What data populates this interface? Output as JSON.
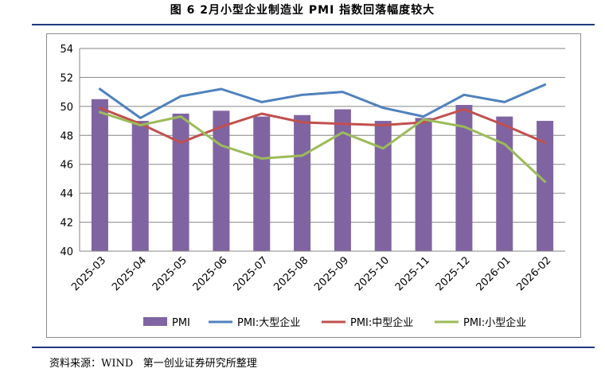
{
  "figure": {
    "title": "图 6  2月小型企业制造业 PMI 指数回落幅度较大",
    "source": "资料来源：WIND   第一创业证券研究所整理"
  },
  "chart_data": {
    "type": "bar",
    "categories": [
      "2025-03",
      "2025-04",
      "2025-05",
      "2025-06",
      "2025-07",
      "2025-08",
      "2025-09",
      "2025-10",
      "2025-11",
      "2025-12",
      "2026-01",
      "2026-02"
    ],
    "ylim": [
      40,
      54
    ],
    "yticks": [
      40,
      42,
      44,
      46,
      48,
      50,
      52,
      54
    ],
    "grid": true,
    "legend_position": "bottom",
    "series": [
      {
        "name": "PMI",
        "type": "bar",
        "color": "#8064a2",
        "values": [
          50.5,
          49.0,
          49.5,
          49.7,
          49.3,
          49.4,
          49.8,
          49.0,
          49.2,
          50.1,
          49.3,
          49.0
        ]
      },
      {
        "name": "PMI:大型企业",
        "type": "line",
        "color": "#4f81bd",
        "values": [
          51.2,
          49.2,
          50.7,
          51.2,
          50.3,
          50.8,
          51.0,
          49.9,
          49.3,
          50.8,
          50.3,
          51.5
        ]
      },
      {
        "name": "PMI:中型企业",
        "type": "line",
        "color": "#c0504d",
        "values": [
          49.9,
          48.8,
          47.5,
          48.6,
          49.5,
          48.9,
          48.8,
          48.7,
          48.9,
          49.8,
          48.7,
          47.5
        ]
      },
      {
        "name": "PMI:小型企业",
        "type": "line",
        "color": "#9bbb59",
        "values": [
          49.6,
          48.7,
          49.3,
          47.3,
          46.4,
          46.6,
          48.2,
          47.1,
          49.1,
          48.6,
          47.4,
          44.8
        ]
      }
    ]
  }
}
